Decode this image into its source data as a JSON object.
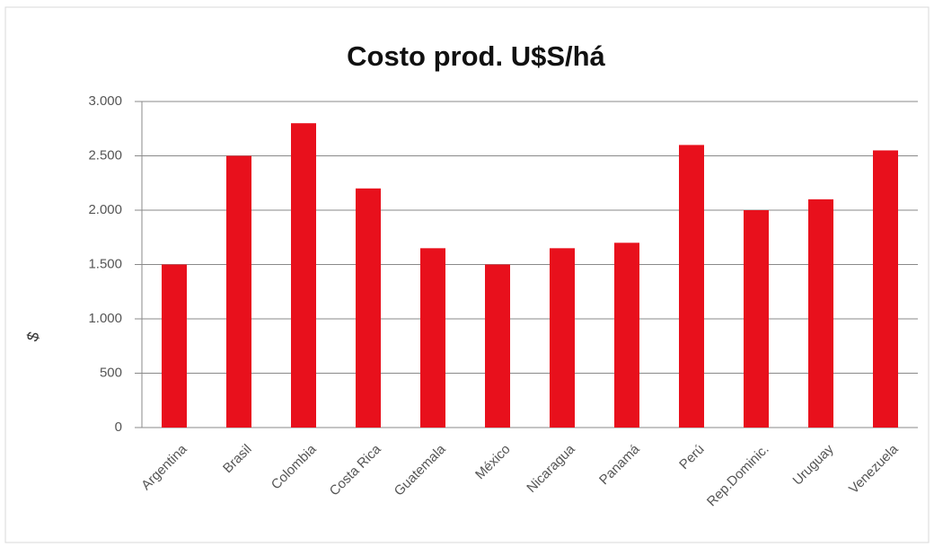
{
  "chart_data": {
    "type": "bar",
    "title": "Costo prod. U$S/há",
    "y_label": "$",
    "categories": [
      "Argentina",
      "Brasil",
      "Colombia",
      "Costa Rica",
      "Guatemala",
      "México",
      "Nicaragua",
      "Panamá",
      "Perú",
      "Rep.Dominic.",
      "Uruguay",
      "Venezuela"
    ],
    "values": [
      1500,
      2500,
      2800,
      2200,
      1650,
      1500,
      1650,
      1700,
      2600,
      2000,
      2100,
      2550
    ],
    "color": "#e8101c",
    "ylim": [
      0,
      3000
    ],
    "yticks": [
      0,
      500,
      {
        "value": 1000,
        "label": "1.000"
      },
      {
        "value": 1500,
        "label": "1.500"
      },
      {
        "value": 2000,
        "label": "2.000"
      },
      {
        "value": 2500,
        "label": "2.500"
      },
      {
        "value": 3000,
        "label": "3.000"
      }
    ],
    "grid": true
  }
}
